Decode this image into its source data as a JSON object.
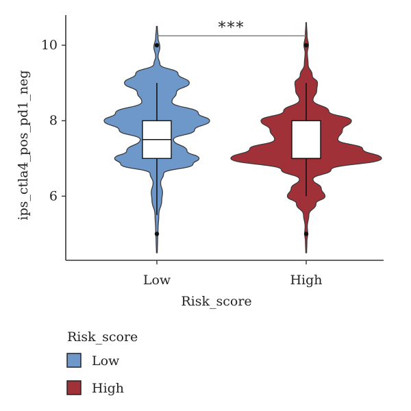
{
  "chart_data": {
    "type": "violin",
    "xlabel": "Risk_score",
    "ylabel": "ips_ctla4_pos_pd1_neg",
    "categories": [
      "Low",
      "High"
    ],
    "ylim": [
      4.3,
      10.8
    ],
    "yticks": [
      6,
      8,
      10
    ],
    "grid": false,
    "legend": {
      "title": "Risk_score",
      "placement": "bottom-left",
      "entries": [
        "Low",
        "High"
      ]
    },
    "significance": {
      "label": "***",
      "between": [
        "Low",
        "High"
      ],
      "y": 10.25
    },
    "series": [
      {
        "name": "Low",
        "color": "#6D98C9",
        "min": 4.5,
        "max": 10.5,
        "box": {
          "q1": 7.0,
          "median": 7.5,
          "q3": 8.0
        },
        "whisker": [
          5.5,
          9.0
        ],
        "outliers": [
          5.0,
          10.0
        ],
        "density": [
          [
            4.5,
            0.005
          ],
          [
            4.8,
            0.01
          ],
          [
            5.1,
            0.015
          ],
          [
            5.5,
            0.025
          ],
          [
            5.9,
            0.065
          ],
          [
            6.1,
            0.075
          ],
          [
            6.35,
            0.05
          ],
          [
            6.6,
            0.09
          ],
          [
            6.85,
            0.48
          ],
          [
            7.0,
            0.56
          ],
          [
            7.2,
            0.4
          ],
          [
            7.5,
            0.22
          ],
          [
            7.75,
            0.5
          ],
          [
            8.0,
            0.7
          ],
          [
            8.2,
            0.55
          ],
          [
            8.5,
            0.2
          ],
          [
            8.75,
            0.26
          ],
          [
            9.0,
            0.43
          ],
          [
            9.25,
            0.28
          ],
          [
            9.5,
            0.04
          ],
          [
            9.7,
            0.015
          ],
          [
            9.95,
            0.04
          ],
          [
            10.2,
            0.015
          ],
          [
            10.5,
            0.005
          ]
        ]
      },
      {
        "name": "High",
        "color": "#A13138",
        "min": 4.5,
        "max": 10.6,
        "box": {
          "q1": 7.0,
          "median": 7.0,
          "q3": 8.0
        },
        "whisker": [
          6.0,
          9.0
        ],
        "outliers": [
          5.0,
          10.0
        ],
        "density": [
          [
            4.5,
            0.005
          ],
          [
            4.8,
            0.01
          ],
          [
            5.0,
            0.02
          ],
          [
            5.2,
            0.015
          ],
          [
            5.5,
            0.035
          ],
          [
            5.8,
            0.13
          ],
          [
            6.0,
            0.25
          ],
          [
            6.2,
            0.2
          ],
          [
            6.45,
            0.09
          ],
          [
            6.7,
            0.33
          ],
          [
            7.0,
            1.0
          ],
          [
            7.25,
            0.75
          ],
          [
            7.5,
            0.42
          ],
          [
            7.75,
            0.48
          ],
          [
            8.0,
            0.6
          ],
          [
            8.25,
            0.3
          ],
          [
            8.55,
            0.09
          ],
          [
            8.8,
            0.14
          ],
          [
            9.0,
            0.15
          ],
          [
            9.2,
            0.08
          ],
          [
            9.5,
            0.025
          ],
          [
            9.8,
            0.015
          ],
          [
            10.0,
            0.03
          ],
          [
            10.25,
            0.012
          ],
          [
            10.6,
            0.004
          ]
        ]
      }
    ]
  }
}
